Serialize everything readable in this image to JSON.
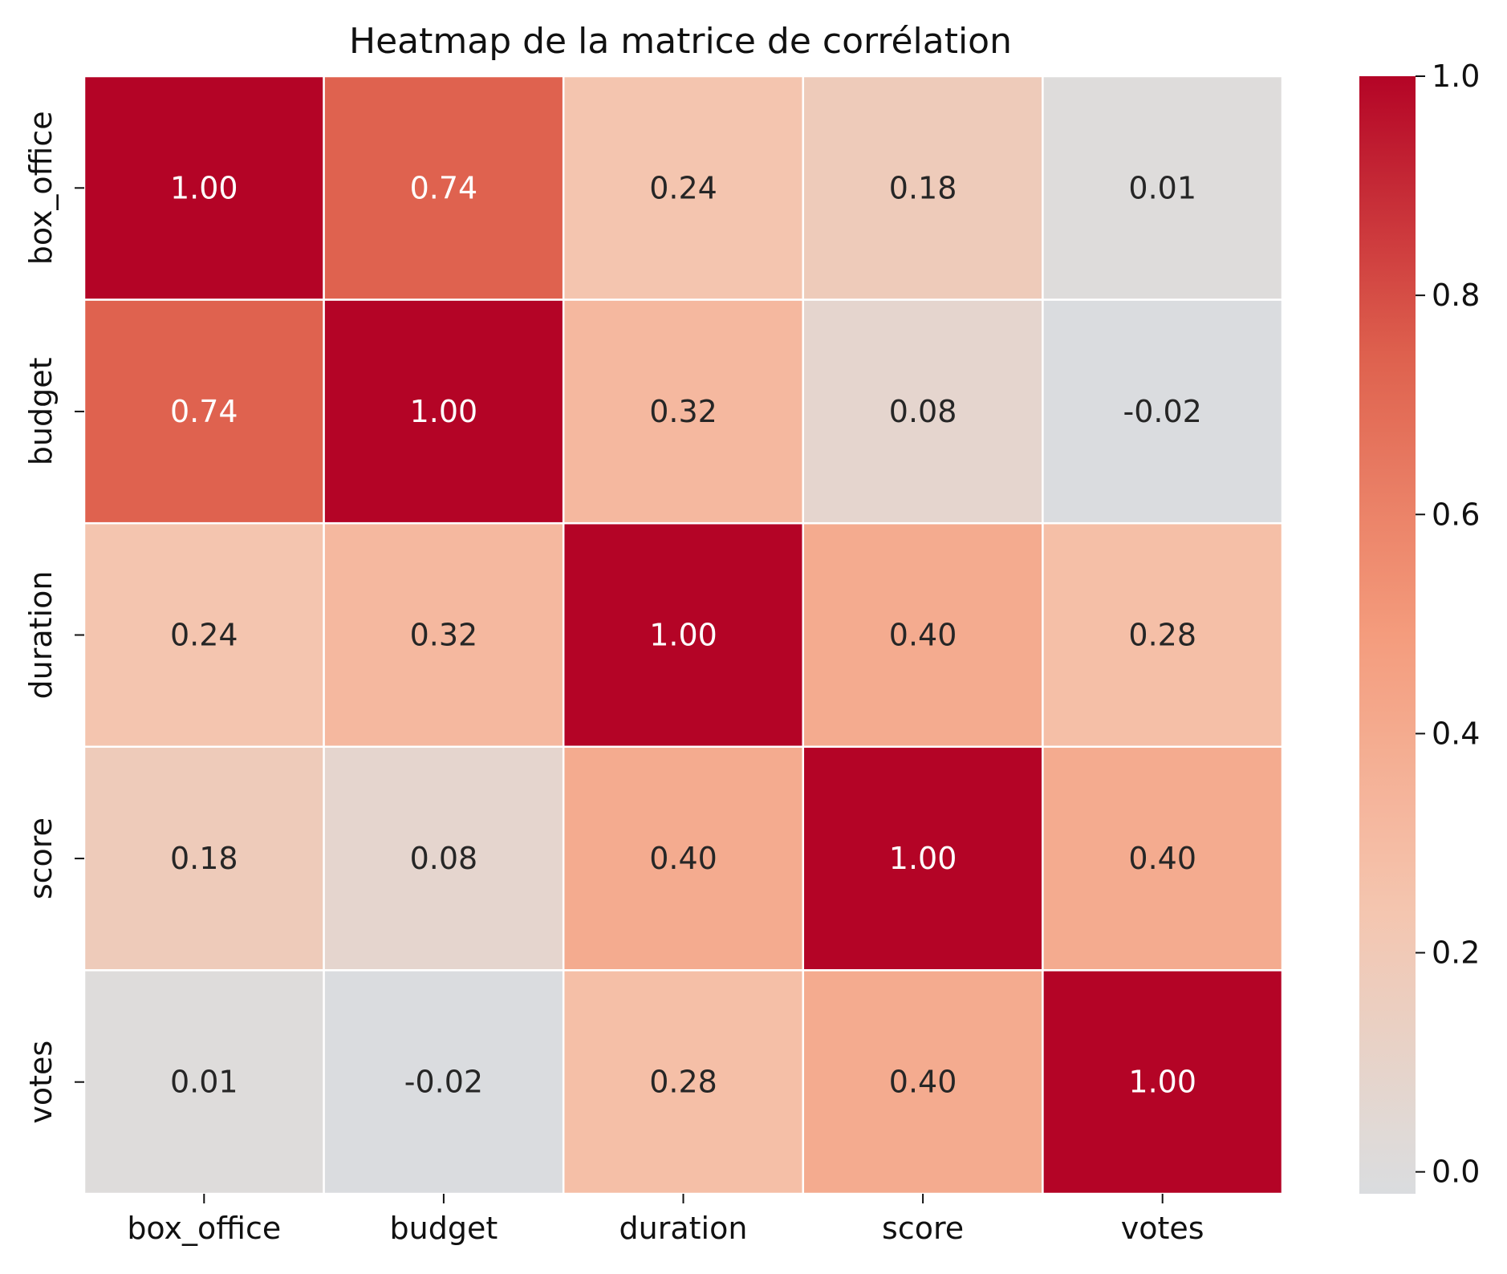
{
  "chart_data": {
    "type": "heatmap",
    "title": "Heatmap de la matrice de corrélation",
    "xlabel": "",
    "ylabel": "",
    "x_categories": [
      "box_office",
      "budget",
      "duration",
      "score",
      "votes"
    ],
    "y_categories": [
      "box_office",
      "budget",
      "duration",
      "score",
      "votes"
    ],
    "values": [
      [
        1.0,
        0.74,
        0.24,
        0.18,
        0.01
      ],
      [
        0.74,
        1.0,
        0.32,
        0.08,
        -0.02
      ],
      [
        0.24,
        0.32,
        1.0,
        0.4,
        0.28
      ],
      [
        0.18,
        0.08,
        0.4,
        1.0,
        0.4
      ],
      [
        0.01,
        -0.02,
        0.28,
        0.4,
        1.0
      ]
    ],
    "value_format": "0.00",
    "colorbar": {
      "min": -0.02,
      "max": 1.0,
      "ticks": [
        0.0,
        0.2,
        0.4,
        0.6,
        0.8,
        1.0
      ],
      "tick_labels": [
        "0.0",
        "0.2",
        "0.4",
        "0.6",
        "0.8",
        "1.0"
      ],
      "colormap": "coolwarm",
      "center": 0
    },
    "colors": {
      "grid_lines": "#ffffff",
      "dark_text": "#262626",
      "light_text": "#ffffff"
    },
    "grid": false
  }
}
